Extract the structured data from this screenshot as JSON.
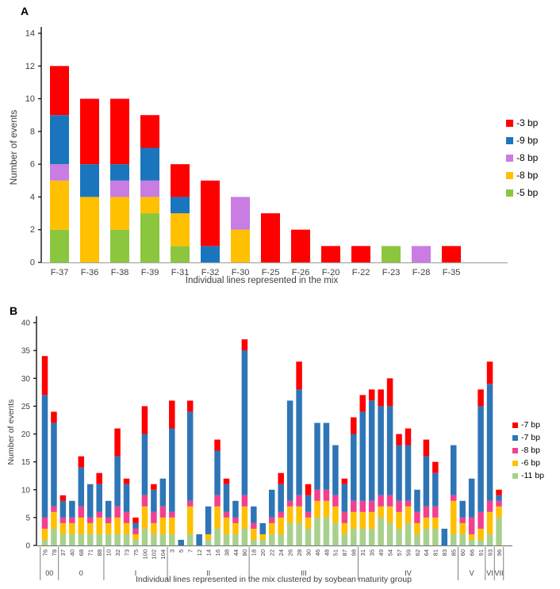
{
  "figure_title": "",
  "chart_data": [
    {
      "id": "A",
      "type": "bar",
      "subtype": "stacked_bar",
      "panel_label": "A",
      "ylabel": "Number of events",
      "xlabel": "Individual lines represented in the mix",
      "ylim": [
        0,
        14
      ],
      "ytick_step": 2,
      "grid": "off",
      "legend_position": "right",
      "categories": [
        "F-37",
        "F-36",
        "F-38",
        "F-39",
        "F-31",
        "F-32",
        "F-30",
        "F-25",
        "F-26",
        "F-20",
        "F-22",
        "F-23",
        "F-28",
        "F-35"
      ],
      "series": [
        {
          "name": "-3 bp",
          "color": "#FE0000",
          "values": [
            3,
            4,
            4,
            2,
            2,
            4,
            0,
            3,
            2,
            1,
            1,
            0,
            0,
            1
          ]
        },
        {
          "name": "-9 bp",
          "color": "#1B75BC",
          "values": [
            3,
            2,
            1,
            2,
            1,
            1,
            0,
            0,
            0,
            0,
            0,
            0,
            0,
            0
          ]
        },
        {
          "name": "-8 bp",
          "color": "#C97CE2",
          "values": [
            1,
            0,
            1,
            1,
            0,
            0,
            2,
            0,
            0,
            0,
            0,
            0,
            1,
            0
          ]
        },
        {
          "name": "-8 bp",
          "color": "#FFC000",
          "values": [
            3,
            4,
            2,
            1,
            2,
            0,
            2,
            0,
            0,
            0,
            0,
            0,
            0,
            0
          ]
        },
        {
          "name": "-5 bp",
          "color": "#8CC63E",
          "values": [
            2,
            0,
            2,
            3,
            1,
            0,
            0,
            0,
            0,
            0,
            0,
            1,
            0,
            0
          ]
        }
      ],
      "stack_note": "stacked bottom-to-top in reverse series order (green base, red top)"
    },
    {
      "id": "B",
      "type": "bar",
      "subtype": "stacked_bar",
      "panel_label": "B",
      "ylabel": "Number of events",
      "xlabel": "Individual lines represented in the mix clustered by soybean maturity group",
      "ylim": [
        0,
        40
      ],
      "ytick_step": 5,
      "grid": "off",
      "legend_position": "right",
      "categories": [
        "76",
        "78",
        "37",
        "40",
        "68",
        "71",
        "88",
        "10",
        "32",
        "73",
        "75",
        "100",
        "102",
        "104",
        "3",
        "5",
        "7",
        "12",
        "14",
        "16",
        "38",
        "44",
        "80",
        "18",
        "20",
        "22",
        "24",
        "26",
        "28",
        "30",
        "46",
        "48",
        "51",
        "87",
        "98",
        "31",
        "35",
        "49",
        "54",
        "57",
        "59",
        "62",
        "64",
        "81",
        "83",
        "85",
        "60",
        "66",
        "91",
        "93",
        "96"
      ],
      "groups": [
        {
          "label": "00",
          "count": 2
        },
        {
          "label": "0",
          "count": 5
        },
        {
          "label": "I",
          "count": 7
        },
        {
          "label": "II",
          "count": 9
        },
        {
          "label": "III",
          "count": 12
        },
        {
          "label": "IV",
          "count": 11
        },
        {
          "label": "V",
          "count": 3
        },
        {
          "label": "VI",
          "count": 1
        },
        {
          "label": "VII",
          "count": 1
        }
      ],
      "series": [
        {
          "name": "-7 bp",
          "color": "#FE0000",
          "values": [
            7,
            2,
            1,
            0,
            2,
            0,
            2,
            0,
            5,
            1,
            1,
            5,
            1,
            0,
            5,
            0,
            2,
            0,
            0,
            2,
            1,
            0,
            2,
            0,
            0,
            0,
            2,
            0,
            5,
            2,
            0,
            0,
            0,
            1,
            3,
            3,
            2,
            3,
            5,
            2,
            3,
            0,
            3,
            2,
            0,
            0,
            0,
            0,
            3,
            4,
            1
          ]
        },
        {
          "name": "-7 bp",
          "color": "#2E75B6",
          "values": [
            22,
            15,
            3,
            3,
            7,
            6,
            5,
            3,
            9,
            5,
            1,
            11,
            4,
            5,
            15,
            1,
            16,
            2,
            5,
            8,
            5,
            3,
            26,
            3,
            2,
            5,
            5,
            18,
            19,
            3,
            12,
            12,
            9,
            5,
            12,
            16,
            18,
            16,
            16,
            10,
            10,
            4,
            9,
            6,
            3,
            9,
            3,
            7,
            19,
            21,
            1
          ]
        },
        {
          "name": "-8 bp",
          "color": "#F2408F",
          "values": [
            2,
            1,
            1,
            1,
            2,
            1,
            1,
            1,
            2,
            2,
            1,
            2,
            2,
            2,
            1,
            0,
            1,
            0,
            0,
            2,
            1,
            1,
            2,
            1,
            0,
            1,
            1,
            1,
            2,
            1,
            2,
            2,
            2,
            2,
            2,
            2,
            2,
            2,
            2,
            2,
            1,
            2,
            2,
            2,
            0,
            1,
            1,
            3,
            3,
            2,
            1
          ]
        },
        {
          "name": "-6 bp",
          "color": "#FFC000",
          "values": [
            2,
            3,
            2,
            2,
            3,
            2,
            3,
            2,
            3,
            2,
            1,
            4,
            2,
            3,
            3,
            0,
            5,
            0,
            1,
            4,
            3,
            2,
            4,
            2,
            1,
            2,
            3,
            3,
            3,
            2,
            3,
            3,
            3,
            2,
            3,
            3,
            3,
            2,
            3,
            3,
            3,
            2,
            2,
            2,
            0,
            6,
            2,
            1,
            2,
            4,
            2
          ]
        },
        {
          "name": "-11 bp",
          "color": "#A8D08D",
          "values": [
            1,
            3,
            2,
            2,
            2,
            2,
            2,
            2,
            2,
            2,
            1,
            3,
            2,
            2,
            2,
            0,
            2,
            0,
            1,
            3,
            2,
            2,
            3,
            1,
            1,
            2,
            2,
            4,
            4,
            3,
            5,
            5,
            4,
            2,
            3,
            3,
            3,
            5,
            4,
            3,
            4,
            2,
            3,
            3,
            0,
            2,
            2,
            1,
            1,
            2,
            5
          ]
        }
      ],
      "stack_note": "stacked bottom-to-top in reverse series order (green base, red top)"
    }
  ]
}
